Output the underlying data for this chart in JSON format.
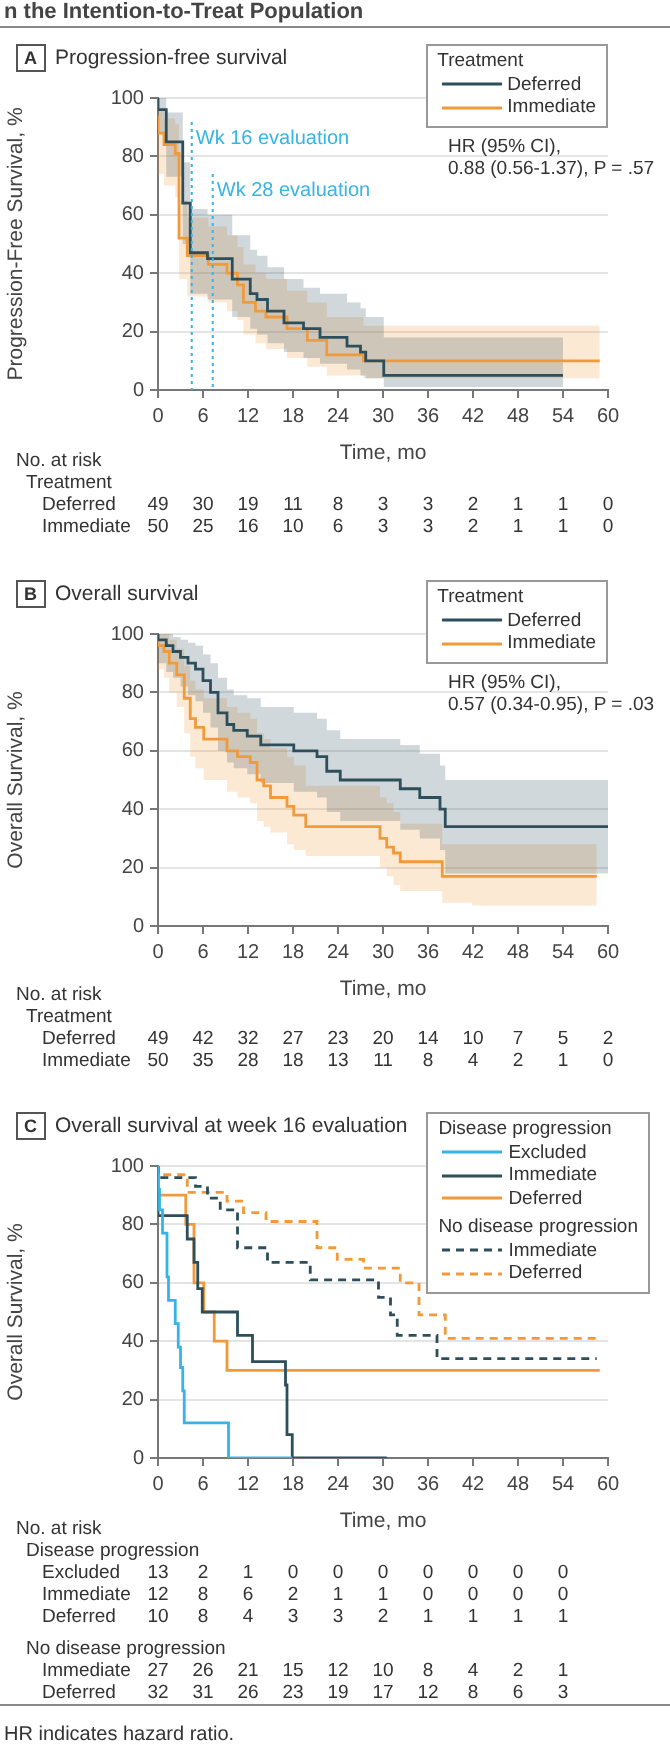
{
  "chart_data": [
    {
      "type": "other",
      "title": "n the Intention-to-Treat Population",
      "annotations": [
        "HR indicates hazard ratio."
      ]
    },
    {
      "type": "step",
      "title": "Progression-free survival",
      "xlabel": "Time, mo",
      "ylabel": "Progression-Free Survival, %",
      "legend_title": "Treatment",
      "legend": "top right",
      "grid": "y",
      "xlim": [
        0,
        60
      ],
      "xticks": [
        0,
        6,
        12,
        18,
        24,
        30,
        36,
        42,
        48,
        54,
        60
      ],
      "ylim": [
        0,
        100
      ],
      "yticks": [
        0,
        20,
        40,
        60,
        80,
        100
      ],
      "annotations": [
        "A",
        "HR (95% CI),\n0.88 (0.56-1.37), P = .57"
      ],
      "ref_lines": [
        {
          "axis": "x",
          "value": 4.5,
          "label": "Wk 16 evaluation",
          "color": "#35b5e5",
          "line_style": "dotted"
        },
        {
          "axis": "x",
          "value": 7.3,
          "label": "Wk 28 evaluation",
          "color": "#35b5e5",
          "line_style": "dotted"
        }
      ],
      "series": [
        {
          "name": "Deferred",
          "color": "#2d4e5a",
          "x": [
            0,
            1.1,
            3.3,
            4.3,
            6.6,
            9.9,
            12.3,
            13.2,
            14.6,
            16.8,
            19.4,
            21.6,
            25.2,
            27,
            27.7,
            30.1,
            42.2,
            54
          ],
          "values": [
            100,
            96,
            85,
            64,
            47,
            45,
            38,
            33,
            31,
            27,
            23,
            21,
            18,
            15,
            13,
            10,
            5,
            5
          ],
          "upper": [
            100,
            100,
            95,
            78,
            62,
            60,
            53,
            48,
            46,
            42,
            38,
            35,
            33,
            30,
            28,
            25,
            18,
            18
          ],
          "lower": [
            100,
            88,
            73,
            50,
            33,
            31,
            25,
            21,
            19,
            16,
            13,
            11,
            9,
            7,
            5,
            4,
            1,
            1
          ]
        },
        {
          "name": "Immediate",
          "color": "#f29a3a",
          "x": [
            0,
            0.8,
            2.3,
            2.8,
            3.9,
            6.7,
            9.2,
            10.6,
            11.4,
            13,
            14.4,
            17.2,
            19.9,
            22.5,
            27.4,
            27.9,
            58.9
          ],
          "values": [
            94,
            88,
            84,
            81,
            52,
            46,
            43,
            40,
            36,
            30,
            27,
            25,
            21,
            17,
            12,
            10,
            10
          ],
          "upper": [
            100,
            96,
            93,
            91,
            65,
            59,
            56,
            53,
            49,
            43,
            40,
            38,
            34,
            30,
            25,
            22,
            22
          ],
          "lower": [
            80,
            74,
            70,
            66,
            38,
            32,
            30,
            27,
            24,
            19,
            16,
            14,
            11,
            8,
            5,
            4,
            4
          ]
        }
      ]
    },
    {
      "type": "other",
      "title": "No. at risk",
      "subtitle": "Treatment",
      "annotations": [
        "Deferred",
        "49 30 19 11 8 3 3 2 1 1 0",
        "Immediate",
        "50 25 16 10 6 3 3 2 1 1 0"
      ]
    },
    {
      "type": "step",
      "title": "Overall survival",
      "xlabel": "Time, mo",
      "ylabel": "Overall Survival, %",
      "legend_title": "Treatment",
      "legend": "top right",
      "grid": "y",
      "xlim": [
        0,
        60
      ],
      "xticks": [
        0,
        6,
        12,
        18,
        24,
        30,
        36,
        42,
        48,
        54,
        60
      ],
      "ylim": [
        0,
        100
      ],
      "yticks": [
        0,
        20,
        40,
        60,
        80,
        100
      ],
      "annotations": [
        "B",
        "HR (95% CI),\n0.57 (0.34-0.95), P = .03"
      ],
      "series": [
        {
          "name": "Deferred",
          "color": "#2d4e5a",
          "x": [
            0,
            1.1,
            2,
            3,
            4,
            5,
            6,
            7,
            8,
            9.2,
            10.1,
            11.9,
            13.7,
            18.1,
            21.2,
            22.5,
            24.3,
            32.3,
            34.9,
            37.6,
            38.3,
            49.6,
            60
          ],
          "values": [
            100,
            98,
            96,
            94,
            92,
            90,
            88,
            84,
            80,
            73,
            69,
            67,
            65,
            62,
            60,
            58,
            53,
            50,
            47,
            44,
            40,
            34,
            34
          ],
          "upper": [
            100,
            100,
            100,
            99,
            98,
            97,
            96,
            93,
            90,
            85,
            81,
            79,
            78,
            75,
            73,
            71,
            67,
            64,
            62,
            59,
            55,
            50,
            50
          ],
          "lower": [
            100,
            90,
            87,
            85,
            82,
            79,
            77,
            73,
            68,
            60,
            56,
            54,
            52,
            49,
            46,
            44,
            39,
            36,
            33,
            30,
            26,
            18,
            18
          ]
        },
        {
          "name": "Immediate",
          "color": "#f29a3a",
          "x": [
            0,
            0.8,
            1.5,
            2.5,
            3.5,
            4.3,
            5,
            6.1,
            9.2,
            10.6,
            12.3,
            13.2,
            14.1,
            15,
            17.2,
            18.1,
            19.7,
            29.6,
            30.5,
            31.4,
            32.3,
            37.9,
            41.9,
            58.5
          ],
          "values": [
            100,
            96,
            94,
            90,
            86,
            78,
            71,
            68,
            64,
            60,
            58,
            56,
            50,
            48,
            44,
            41,
            38,
            34,
            30,
            27,
            25,
            22,
            17,
            17
          ],
          "upper": [
            100,
            100,
            100,
            98,
            95,
            89,
            84,
            81,
            78,
            75,
            73,
            71,
            66,
            64,
            61,
            58,
            55,
            48,
            44,
            42,
            39,
            35,
            28,
            28
          ],
          "lower": [
            100,
            88,
            85,
            80,
            75,
            66,
            58,
            54,
            50,
            46,
            44,
            42,
            36,
            34,
            32,
            28,
            26,
            24,
            20,
            17,
            14,
            12,
            8,
            7
          ]
        }
      ]
    },
    {
      "type": "other",
      "title": "No. at risk",
      "subtitle": "Treatment",
      "annotations": [
        "Deferred",
        "49 42 32 27 23 20 14 10 7 5 2",
        "Immediate",
        "50 35 28 18 13 11 8 4 2 1 0"
      ]
    },
    {
      "type": "step",
      "title": "Overall survival at week 16 evaluation",
      "xlabel": "Time, mo",
      "ylabel": "Overall Survival, %",
      "legend_title": "Disease progression",
      "legend": "top right",
      "grid": "y",
      "xlim": [
        0,
        60
      ],
      "xticks": [
        0,
        6,
        12,
        18,
        24,
        30,
        36,
        42,
        48,
        54,
        60
      ],
      "ylim": [
        0,
        100
      ],
      "yticks": [
        0,
        20,
        40,
        60,
        80,
        100
      ],
      "annotations": [
        "C",
        "No disease progression"
      ],
      "series": [
        {
          "name": "Excluded",
          "color": "#35b5e5",
          "x": [
            0,
            0.2,
            0.6,
            1.2,
            1.4,
            2.3,
            2.7,
            3,
            3.3,
            3.5,
            9.4,
            17.9
          ],
          "values": [
            100,
            92,
            85,
            77,
            62,
            54,
            46,
            38,
            31,
            23,
            12,
            0
          ]
        },
        {
          "name": "Immediate",
          "color": "#2d4e5a",
          "x": [
            0,
            3.9,
            4.8,
            5.3,
            5.9,
            10.6,
            12.6,
            17,
            17.2,
            17.9,
            30.5
          ],
          "values": [
            100,
            83,
            75,
            67,
            58,
            50,
            42,
            33,
            25,
            8,
            0
          ]
        },
        {
          "name": "Deferred",
          "color": "#f29a3a",
          "x": [
            0,
            3.7,
            4.8,
            6.1,
            7.5,
            9.2,
            13,
            58.9
          ],
          "values": [
            100,
            90,
            80,
            60,
            50,
            40,
            30,
            30
          ]
        },
        {
          "name": "Immediate",
          "color": "#2d4e5a",
          "line_style": "dashed",
          "x": [
            0,
            5,
            6.6,
            8.3,
            10.6,
            14.6,
            20.3,
            29.4,
            31,
            31.9,
            37.2,
            41.6,
            58.5
          ],
          "values": [
            100,
            96,
            93,
            89,
            85,
            72,
            67,
            61,
            55,
            49,
            42,
            34,
            34
          ]
        },
        {
          "name": "Deferred",
          "color": "#f29a3a",
          "line_style": "dashed",
          "x": [
            0,
            3.9,
            9.2,
            11.4,
            14.4,
            21.2,
            23.9,
            27.4,
            32.3,
            34.8,
            38.3,
            49.2,
            58.9
          ],
          "values": [
            100,
            97,
            91,
            88,
            84,
            81,
            72,
            68,
            65,
            60,
            49,
            41,
            41
          ]
        }
      ]
    },
    {
      "type": "other",
      "title": "No. at risk",
      "subtitle": "Disease progression",
      "annotations": [
        "Excluded",
        "13 2 1 0 0 0 0 0 0 0",
        "Immediate",
        "12 8 6 2 1 1 0 0 0 0",
        "Deferred",
        "10 8 4 3 3 2 1 1 1 1"
      ]
    },
    {
      "type": "other",
      "title": "No disease progression",
      "annotations": [
        "Immediate",
        "27 26 21 15 12 10 8 4 2 1",
        "Deferred",
        "32 31 26 23 19 17 12 8 6 3"
      ]
    }
  ]
}
